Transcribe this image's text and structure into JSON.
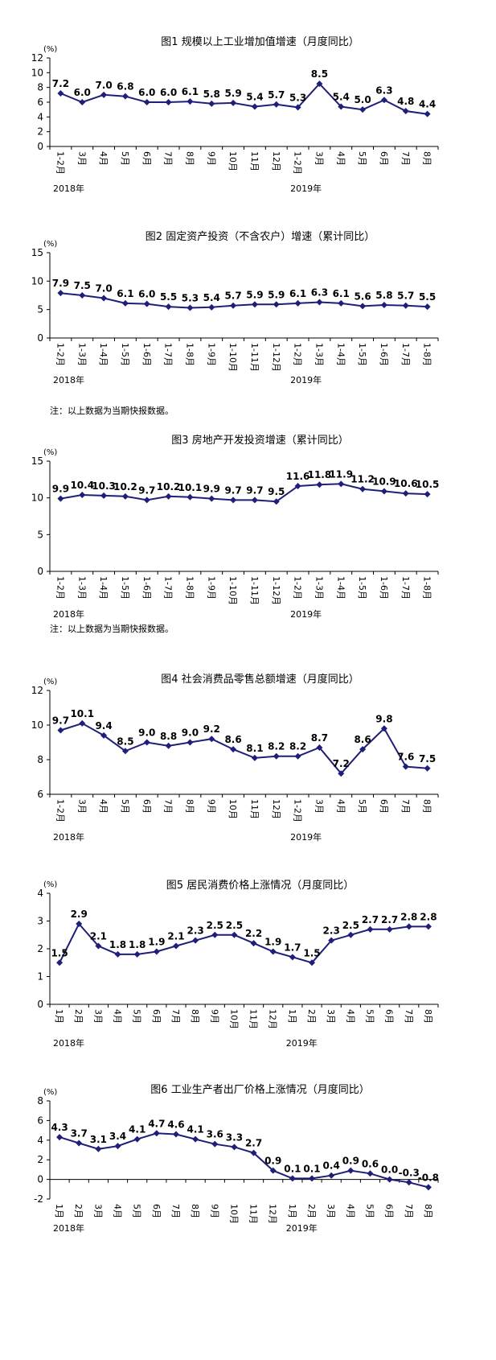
{
  "colors": {
    "series": "#1F1F7A",
    "axis": "#000000",
    "text": "#000000"
  },
  "year_labels": {
    "first": "2018年",
    "second": "2019年"
  },
  "unit": "(%)",
  "note": "注：以上数据为当期快报数据。",
  "chart_data": [
    {
      "type": "line",
      "title": "图1   规模以上工业增加值增速（月度同比）",
      "ylabel": "(%)",
      "ylim": [
        0,
        12
      ],
      "yticks": [
        0,
        2,
        4,
        6,
        8,
        10,
        12
      ],
      "grid": false,
      "categories": [
        "1-2月",
        "3月",
        "4月",
        "5月",
        "6月",
        "7月",
        "8月",
        "9月",
        "10月",
        "11月",
        "12月",
        "1-2月",
        "3月",
        "4月",
        "5月",
        "6月",
        "7月",
        "8月"
      ],
      "series": [
        {
          "values": [
            7.2,
            6.0,
            7.0,
            6.8,
            6.0,
            6.0,
            6.1,
            5.8,
            5.9,
            5.4,
            5.7,
            5.3,
            8.5,
            5.4,
            5.0,
            6.3,
            4.8,
            4.4
          ]
        }
      ],
      "data_labels": [
        "7.2",
        "6.0",
        "7.0",
        "6.8",
        "6.0",
        "6.0",
        "6.1",
        "5.8",
        "5.9",
        "5.4",
        "5.7",
        "5.3",
        "8.5",
        "5.4",
        "5.0",
        "6.3",
        "4.8",
        "4.4"
      ]
    },
    {
      "type": "line",
      "title": "图2   固定资产投资（不含农户）增速（累计同比）",
      "ylabel": "(%)",
      "ylim": [
        0,
        15
      ],
      "yticks": [
        0,
        5,
        10,
        15
      ],
      "grid": false,
      "categories": [
        "1-2月",
        "1-3月",
        "1-4月",
        "1-5月",
        "1-6月",
        "1-7月",
        "1-8月",
        "1-9月",
        "1-10月",
        "1-11月",
        "1-12月",
        "1-2月",
        "1-3月",
        "1-4月",
        "1-5月",
        "1-6月",
        "1-7月",
        "1-8月"
      ],
      "series": [
        {
          "values": [
            7.9,
            7.5,
            7.0,
            6.1,
            6.0,
            5.5,
            5.3,
            5.4,
            5.7,
            5.9,
            5.9,
            6.1,
            6.3,
            6.1,
            5.6,
            5.8,
            5.7,
            5.5
          ]
        }
      ],
      "data_labels": [
        "7.9",
        "7.5",
        "7.0",
        "6.1",
        "6.0",
        "5.5",
        "5.3",
        "5.4",
        "5.7",
        "5.9",
        "5.9",
        "6.1",
        "6.3",
        "6.1",
        "5.6",
        "5.8",
        "5.7",
        "5.5"
      ],
      "note": "注：以上数据为当期快报数据。"
    },
    {
      "type": "line",
      "title": "图3   房地产开发投资增速（累计同比）",
      "ylabel": "(%)",
      "ylim": [
        0,
        15
      ],
      "yticks": [
        0,
        5,
        10,
        15
      ],
      "grid": false,
      "categories": [
        "1-2月",
        "1-3月",
        "1-4月",
        "1-5月",
        "1-6月",
        "1-7月",
        "1-8月",
        "1-9月",
        "1-10月",
        "1-11月",
        "1-12月",
        "1-2月",
        "1-3月",
        "1-4月",
        "1-5月",
        "1-6月",
        "1-7月",
        "1-8月"
      ],
      "series": [
        {
          "values": [
            9.9,
            10.4,
            10.3,
            10.2,
            9.7,
            10.2,
            10.1,
            9.9,
            9.7,
            9.7,
            9.5,
            11.6,
            11.8,
            11.9,
            11.2,
            10.9,
            10.6,
            10.5
          ]
        }
      ],
      "data_labels": [
        "9.9",
        "10.4",
        "10.3",
        "10.2",
        "9.7",
        "10.2",
        "10.1",
        "9.9",
        "9.7",
        "9.7",
        "9.5",
        "11.6",
        "11.8",
        "11.9",
        "11.2",
        "10.9",
        "10.6",
        "10.5"
      ],
      "note": "注：以上数据为当期快报数据。"
    },
    {
      "type": "line",
      "title": "图4   社会消费品零售总额增速（月度同比）",
      "ylabel": "(%)",
      "ylim": [
        6,
        12
      ],
      "yticks": [
        6,
        8,
        10,
        12
      ],
      "grid": false,
      "categories": [
        "1-2月",
        "3月",
        "4月",
        "5月",
        "6月",
        "7月",
        "8月",
        "9月",
        "10月",
        "11月",
        "12月",
        "1-2月",
        "3月",
        "4月",
        "5月",
        "6月",
        "7月",
        "8月"
      ],
      "series": [
        {
          "values": [
            9.7,
            10.1,
            9.4,
            8.5,
            9.0,
            8.8,
            9.0,
            9.2,
            8.6,
            8.1,
            8.2,
            8.2,
            8.7,
            7.2,
            8.6,
            9.8,
            7.6,
            7.5
          ]
        }
      ],
      "data_labels": [
        "9.7",
        "10.1",
        "9.4",
        "8.5",
        "9.0",
        "8.8",
        "9.0",
        "9.2",
        "8.6",
        "8.1",
        "8.2",
        "8.2",
        "8.7",
        "7.2",
        "8.6",
        "9.8",
        "7.6",
        "7.5"
      ]
    },
    {
      "type": "line",
      "title": "图5   居民消费价格上涨情况（月度同比）",
      "ylabel": "(%)",
      "ylim": [
        0,
        4
      ],
      "yticks": [
        0,
        1,
        2,
        3,
        4
      ],
      "grid": false,
      "categories": [
        "1月",
        "2月",
        "3月",
        "4月",
        "5月",
        "6月",
        "7月",
        "8月",
        "9月",
        "10月",
        "11月",
        "12月",
        "1月",
        "2月",
        "3月",
        "4月",
        "5月",
        "6月",
        "7月",
        "8月"
      ],
      "series": [
        {
          "values": [
            1.5,
            2.9,
            2.1,
            1.8,
            1.8,
            1.9,
            2.1,
            2.3,
            2.5,
            2.5,
            2.2,
            1.9,
            1.7,
            1.5,
            2.3,
            2.5,
            2.7,
            2.7,
            2.8,
            2.8
          ]
        }
      ],
      "data_labels": [
        "1.5",
        "2.9",
        "2.1",
        "1.8",
        "1.8",
        "1.9",
        "2.1",
        "2.3",
        "2.5",
        "2.5",
        "2.2",
        "1.9",
        "1.7",
        "1.5",
        "2.3",
        "2.5",
        "2.7",
        "2.7",
        "2.8",
        "2.8"
      ]
    },
    {
      "type": "line",
      "title": "图6   工业生产者出厂价格上涨情况（月度同比）",
      "ylabel": "(%)",
      "ylim": [
        -2,
        8
      ],
      "yticks": [
        -2,
        0,
        2,
        4,
        6,
        8
      ],
      "grid": false,
      "categories": [
        "1月",
        "2月",
        "3月",
        "4月",
        "5月",
        "6月",
        "7月",
        "8月",
        "9月",
        "10月",
        "11月",
        "12月",
        "1月",
        "2月",
        "3月",
        "4月",
        "5月",
        "6月",
        "7月",
        "8月"
      ],
      "series": [
        {
          "values": [
            4.3,
            3.7,
            3.1,
            3.4,
            4.1,
            4.7,
            4.6,
            4.1,
            3.6,
            3.3,
            2.7,
            0.9,
            0.1,
            0.1,
            0.4,
            0.9,
            0.6,
            0.0,
            -0.3,
            -0.8
          ]
        }
      ],
      "data_labels": [
        "4.3",
        "3.7",
        "3.1",
        "3.4",
        "4.1",
        "4.7",
        "4.6",
        "4.1",
        "3.6",
        "3.3",
        "2.7",
        "0.9",
        "0.1",
        "0.1",
        "0.4",
        "0.9",
        "0.6",
        "0.0",
        "-0.3",
        "-0.8"
      ]
    }
  ]
}
